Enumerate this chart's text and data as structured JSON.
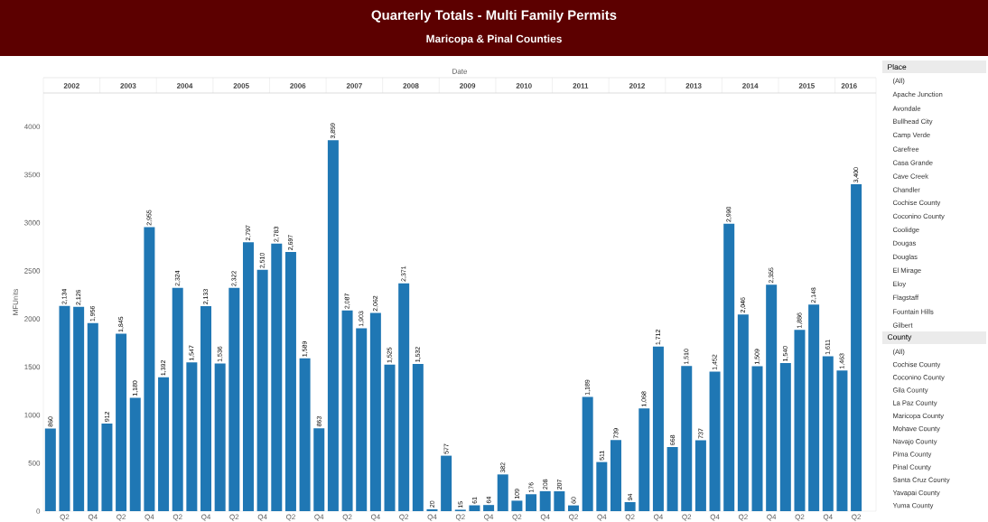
{
  "chart_data": [
    {
      "type": "bar",
      "title": "Quarterly Totals - Multi Family Permits",
      "subtitle": "Maricopa & Pinal Counties",
      "ylabel": "MFUnits",
      "color": "#1f77b4",
      "categories": [
        null,
        "Q2",
        null,
        "Q4",
        null,
        "Q2",
        null,
        "Q4",
        null,
        "Q2",
        null,
        "Q4",
        null,
        "Q2",
        null,
        "Q4",
        null,
        "Q2",
        null,
        "Q4",
        null,
        "Q2",
        null,
        "Q4",
        null,
        "Q2",
        null,
        "Q4",
        null,
        "Q2",
        null,
        "Q4",
        null,
        "Q2",
        null,
        "Q4",
        null,
        "Q2",
        null,
        "Q4",
        null,
        "Q2",
        null,
        "Q4",
        null,
        "Q2",
        null,
        "Q4",
        null,
        "Q2",
        null,
        "Q4",
        null,
        "Q2",
        null,
        "Q4",
        null,
        "Q2"
      ],
      "values": [
        860,
        2134,
        2126,
        1956,
        912,
        1845,
        1180,
        2955,
        1392,
        2324,
        1547,
        2133,
        1536,
        2322,
        2797,
        2510,
        2783,
        2697,
        1589,
        863,
        3859,
        2087,
        1903,
        2062,
        1525,
        2371,
        1532,
        20,
        577,
        15,
        61,
        64,
        382,
        109,
        176,
        208,
        207,
        60,
        1189,
        511,
        739,
        94,
        1068,
        1712,
        668,
        1510,
        737,
        1452,
        2990,
        2046,
        1509,
        2355,
        1540,
        1886,
        2148,
        1611,
        1463,
        3400
      ],
      "value_labels": [
        "860",
        "2,134",
        "2,126",
        "1,956",
        "912",
        "1,845",
        "1,180",
        "2,955",
        "1,392",
        "2,324",
        "1,547",
        "2,133",
        "1,536",
        "2,322",
        "2,797",
        "2,510",
        "2,783",
        "2,697",
        "1,589",
        "863",
        "3,859",
        "2,087",
        "1,903",
        "2,062",
        "1,525",
        "2,371",
        "1,532",
        "20",
        "577",
        "15",
        "61",
        "64",
        "382",
        "109",
        "176",
        "208",
        "207",
        "60",
        "1,189",
        "511",
        "739",
        "94",
        "1,068",
        "1,712",
        "668",
        "1,510",
        "737",
        "1,452",
        "2,990",
        "2,046",
        "1,509",
        "2,355",
        "1,540",
        "1,886",
        "2,148",
        "1,611",
        "1,463",
        "3,400"
      ],
      "ylim": [
        0,
        4350
      ],
      "yticks": [
        0,
        500,
        1000,
        1500,
        2000,
        2500,
        3000,
        3500,
        4000
      ],
      "annotations": [
        "Date",
        "2002",
        "2003",
        "2004",
        "2005",
        "2006",
        "2007",
        "2008",
        "2009",
        "2010",
        "2011",
        "2012",
        "2013",
        "2014",
        "2015",
        "2016"
      ]
    },
    {
      "type": "other",
      "title": "Place",
      "annotations": [
        "(All)",
        "Apache Junction",
        "Avondale",
        "Bullhead City",
        "Camp Verde",
        "Carefree",
        "Casa Grande",
        "Cave Creek",
        "Chandler",
        "Cochise County",
        "Coconino County",
        "Coolidge",
        "Dougas",
        "Douglas",
        "El Mirage",
        "Eloy",
        "Flagstaff",
        "Fountain Hills",
        "Gilbert"
      ]
    },
    {
      "type": "other",
      "title": "County",
      "annotations": [
        "(All)",
        "Cochise County",
        "Coconino County",
        "Gila County",
        "La Paz County",
        "Maricopa County",
        "Mohave County",
        "Navajo County",
        "Pima County",
        "Pinal County",
        "Santa Cruz County",
        "Yavapai County",
        "Yuma County"
      ]
    }
  ]
}
